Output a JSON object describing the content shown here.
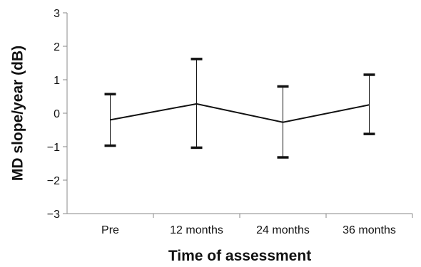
{
  "chart_data": {
    "type": "line",
    "title": "",
    "xlabel": "Time of assessment",
    "ylabel": "MD slope/year (dB)",
    "categories": [
      "Pre",
      "12 months",
      "24 months",
      "36 months"
    ],
    "y_ticks": [
      "−3",
      "−2",
      "−1",
      "0",
      "1",
      "2",
      "3"
    ],
    "ylim": [
      -3,
      3
    ],
    "grid": false,
    "legend": "none",
    "series": [
      {
        "values": [
          -0.2,
          0.28,
          -0.27,
          0.25
        ],
        "error_upper": [
          0.57,
          1.62,
          0.8,
          1.15
        ],
        "error_lower": [
          -0.97,
          -1.03,
          -1.32,
          -0.62
        ]
      }
    ],
    "colors": {
      "line": "#111111",
      "error_bar": "#111111",
      "axis": "#888888"
    }
  }
}
